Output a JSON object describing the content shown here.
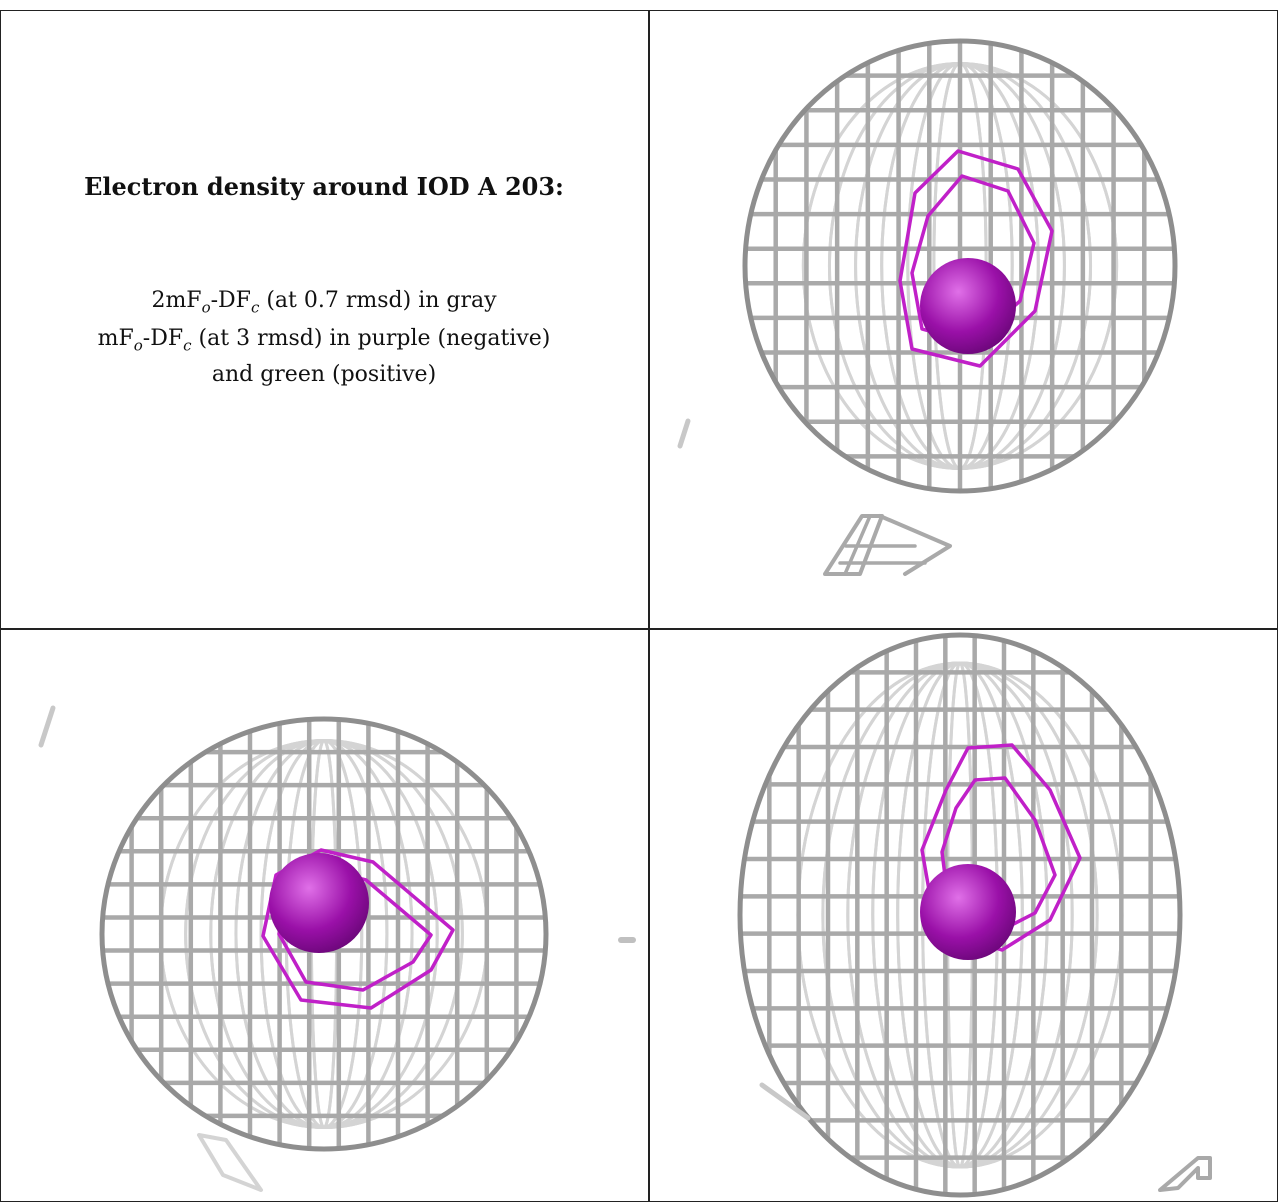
{
  "legend": {
    "title": "Electron density around IOD A 203:",
    "lines": [
      {
        "pre": "2mF",
        "sub1": "o",
        "mid": "-DF",
        "sub2": "c",
        "post": " (at 0.7 rmsd) in gray"
      },
      {
        "pre": "mF",
        "sub1": "o",
        "mid": "-DF",
        "sub2": "c",
        "post": " (at 3 rmsd) in purple (negative)"
      },
      {
        "pre": "",
        "sub1": "",
        "mid": "",
        "sub2": "",
        "post": "and green (positive)"
      }
    ]
  },
  "colors": {
    "gray_mesh": "#a9a9a9",
    "gray_mesh_light": "#d4d4d4",
    "purple_mesh": "#c020c8",
    "purple_blob": "#9a10a8",
    "border": "#222222"
  },
  "panels": [
    {
      "name": "view-top-right",
      "mesh": "gray-purple-sphere"
    },
    {
      "name": "view-bottom-left",
      "mesh": "gray-purple-sphere"
    },
    {
      "name": "view-bottom-right",
      "mesh": "gray-purple-sphere"
    }
  ]
}
